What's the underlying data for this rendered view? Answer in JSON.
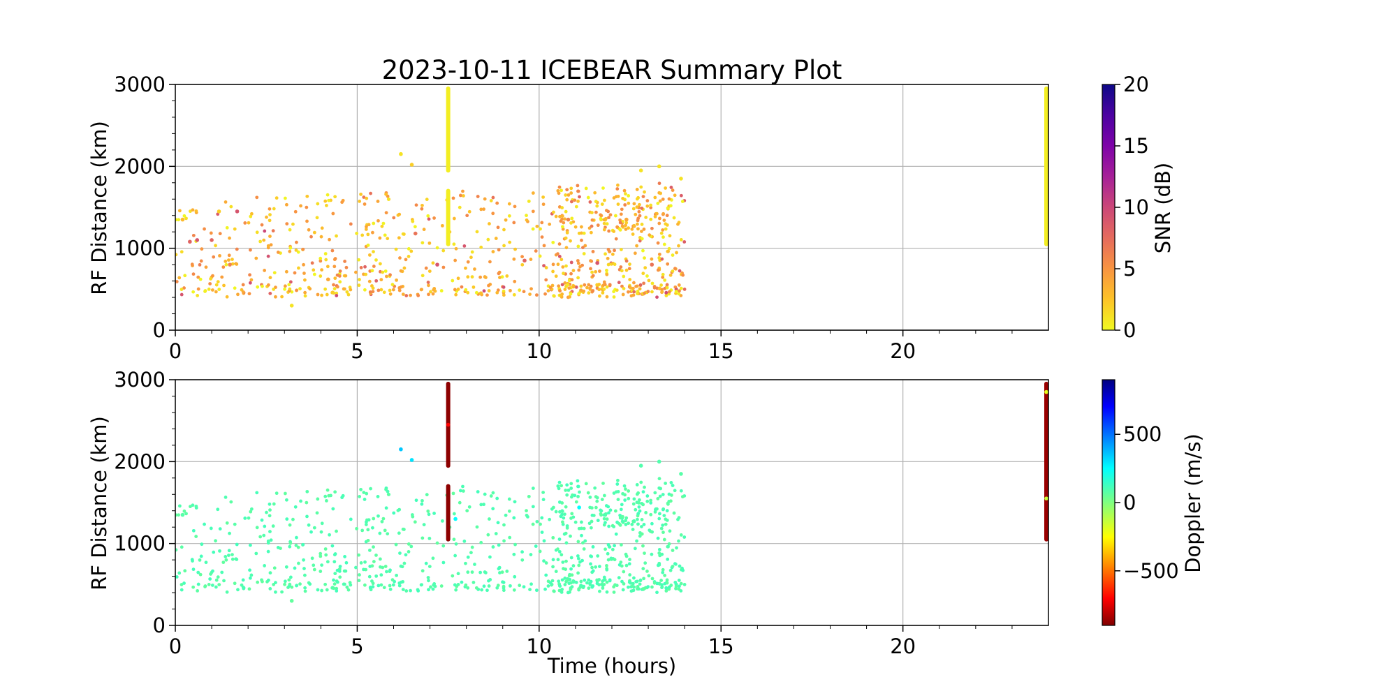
{
  "chart_data": [
    {
      "type": "scatter",
      "title": "2023-10-11 ICEBEAR Summary Plot",
      "xlabel": "",
      "ylabel": "RF Distance (km)",
      "xlim": [
        0,
        24
      ],
      "ylim": [
        0,
        3000
      ],
      "xticks": [
        0,
        5,
        10,
        15,
        20
      ],
      "yticks": [
        0,
        1000,
        2000,
        3000
      ],
      "grid": true,
      "colorbar": {
        "label": "SNR (dB)",
        "range": [
          0,
          20
        ],
        "ticks": [
          0,
          5,
          10,
          15,
          20
        ],
        "colormap": "plasma_r"
      },
      "scatter_region": {
        "x": [
          0,
          14
        ],
        "y": [
          400,
          1800
        ],
        "typical_color_value": [
          0,
          6
        ]
      },
      "vertical_streaks": [
        {
          "x": 7.5,
          "y": [
            1950,
            2950
          ],
          "color_value": 0.5
        },
        {
          "x": 7.5,
          "y": [
            1050,
            1700
          ],
          "color_value": 0.5
        },
        {
          "x": 24,
          "y": [
            1050,
            2950
          ],
          "color_value": 0.5
        }
      ],
      "points": [
        [
          6.2,
          2150,
          1
        ],
        [
          6.5,
          2020,
          2
        ],
        [
          12.8,
          1950,
          1
        ],
        [
          13.3,
          2000,
          1
        ],
        [
          0.2,
          1350,
          3
        ],
        [
          0.4,
          1080,
          8
        ],
        [
          0.6,
          1100,
          9
        ],
        [
          1.0,
          1100,
          8
        ],
        [
          1.2,
          1450,
          2
        ],
        [
          1.5,
          800,
          6
        ],
        [
          1.7,
          1450,
          9
        ],
        [
          3.2,
          300,
          1
        ],
        [
          4.2,
          620,
          4
        ],
        [
          6.6,
          1180,
          7
        ],
        [
          7.2,
          800,
          9
        ],
        [
          8.4,
          450,
          3
        ],
        [
          9.6,
          850,
          8
        ],
        [
          10.8,
          1350,
          6
        ],
        [
          11.6,
          820,
          9
        ],
        [
          12.4,
          1350,
          4
        ],
        [
          13.1,
          800,
          7
        ],
        [
          13.9,
          1850,
          1
        ]
      ]
    },
    {
      "type": "scatter",
      "title": "",
      "xlabel": "Time (hours)",
      "ylabel": "RF Distance (km)",
      "xlim": [
        0,
        24
      ],
      "ylim": [
        0,
        3000
      ],
      "xticks": [
        0,
        5,
        10,
        15,
        20
      ],
      "yticks": [
        0,
        1000,
        2000,
        3000
      ],
      "grid": true,
      "colorbar": {
        "label": "Doppler (m/s)",
        "range": [
          -900,
          900
        ],
        "ticks": [
          -500,
          0,
          500
        ],
        "tick_labels": [
          "−500",
          "0",
          "500"
        ],
        "colormap": "jet_r"
      },
      "scatter_region": {
        "x": [
          0,
          14
        ],
        "y": [
          400,
          1800
        ],
        "typical_color_value": [
          60,
          120
        ]
      },
      "vertical_streaks": [
        {
          "x": 7.5,
          "y": [
            1950,
            2950
          ],
          "color_value": -880
        },
        {
          "x": 7.5,
          "y": [
            1050,
            1700
          ],
          "color_value": -880
        },
        {
          "x": 24,
          "y": [
            1050,
            2950
          ],
          "color_value": -860
        }
      ],
      "points": [
        [
          6.2,
          2150,
          350
        ],
        [
          6.5,
          2020,
          300
        ],
        [
          11.1,
          1440,
          250
        ],
        [
          7.7,
          1300,
          250
        ],
        [
          7.5,
          2450,
          -700
        ],
        [
          24,
          2850,
          -200
        ],
        [
          24,
          1550,
          -150
        ],
        [
          3.2,
          300,
          60
        ],
        [
          0.2,
          1350,
          80
        ],
        [
          12.8,
          1950,
          90
        ],
        [
          13.3,
          2000,
          90
        ],
        [
          13.9,
          1850,
          80
        ]
      ]
    }
  ]
}
